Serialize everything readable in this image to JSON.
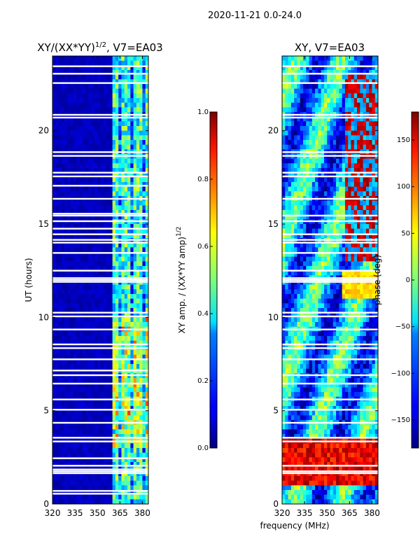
{
  "suptitle": "2020-11-21 0.0-24.0",
  "common_xlabel": "frequency (MHz)",
  "chart_data": [
    {
      "type": "heatmap",
      "title": "XY/(XX*YY)",
      "title_sup": "1/2",
      "title_suffix": ", V7=EA03",
      "xlabel": "",
      "ylabel": "UT (hours)",
      "xlim": [
        320,
        384
      ],
      "ylim": [
        0,
        24
      ],
      "xticks": [
        320,
        335,
        350,
        365,
        380
      ],
      "yticks": [
        0,
        5,
        10,
        15,
        20
      ],
      "signal_band_mhz": [
        361,
        383
      ],
      "colormap": "jet",
      "colorbar": {
        "label": "XY amp. / (XX*YY amp)",
        "label_sup": "1/2",
        "range": [
          0.0,
          1.0
        ],
        "ticks": [
          "0.0",
          "0.2",
          "0.4",
          "0.6",
          "0.8",
          "1.0"
        ]
      },
      "gaps_hours": [
        0.55,
        0.7,
        1.65,
        1.75,
        1.85,
        2.05,
        2.45,
        3.35,
        3.55,
        4.35,
        5.05,
        5.6,
        6.45,
        6.9,
        7.15,
        7.75,
        8.35,
        8.55,
        9.35,
        10.05,
        10.25,
        11.9,
        12.0,
        12.1,
        12.5,
        13.45,
        14.0,
        14.15,
        14.45,
        14.75,
        15.15,
        15.45,
        15.55,
        16.35,
        17.05,
        17.55,
        17.75,
        18.65,
        18.85,
        20.7,
        20.85,
        22.55,
        23.05,
        23.45
      ]
    },
    {
      "type": "heatmap",
      "title": "XY, V7=EA03",
      "xlabel": "",
      "ylabel": "",
      "xlim": [
        320,
        384
      ],
      "ylim": [
        0,
        24
      ],
      "xticks": [
        320,
        335,
        350,
        365,
        380
      ],
      "yticks": [
        0,
        5,
        10,
        15,
        20
      ],
      "colormap": "jet",
      "colorbar": {
        "label": "phase (deg)",
        "range": [
          -180,
          180
        ],
        "ticks": [
          "−150",
          "−100",
          "−50",
          "0",
          "50",
          "100",
          "150"
        ],
        "tick_values": [
          -150,
          -100,
          -50,
          0,
          50,
          100,
          150
        ]
      },
      "gaps_hours": [
        1.65,
        1.75,
        2.05,
        3.35,
        3.55,
        4.35,
        5.05,
        5.6,
        6.45,
        6.9,
        7.75,
        8.35,
        8.55,
        9.35,
        10.05,
        10.25,
        11.9,
        12.0,
        12.1,
        12.5,
        13.45,
        14.0,
        14.15,
        14.45,
        15.15,
        15.45,
        16.35,
        17.55,
        17.75,
        18.65,
        18.85,
        20.7,
        20.85,
        22.55,
        23.05,
        23.45
      ]
    }
  ]
}
